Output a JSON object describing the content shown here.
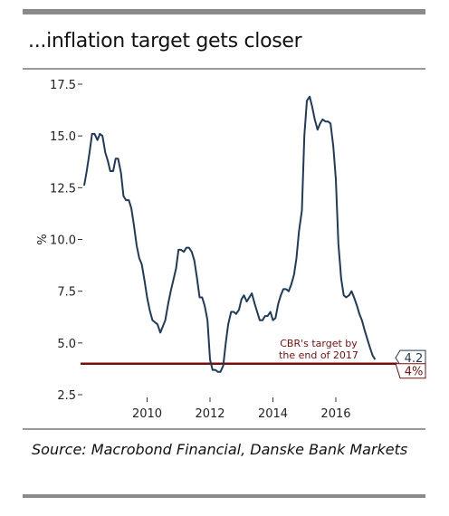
{
  "title": "...inflation target gets closer",
  "source": "Source: Macrobond Financial, Danske Bank Markets",
  "chart_data": {
    "type": "line",
    "title": "...inflation target gets closer",
    "xlabel": "",
    "ylabel": "%",
    "x_ticks": [
      "2010",
      "2012",
      "2014",
      "2016"
    ],
    "y_ticks": [
      "2.5",
      "5.0",
      "7.5",
      "10.0",
      "12.5",
      "15.0",
      "17.5"
    ],
    "xlim": [
      2008.0,
      2017.9
    ],
    "ylim": [
      2.5,
      17.5
    ],
    "grid": false,
    "series": [
      {
        "color": "#1f3a5a",
        "x": [
          2008.0,
          2008.08,
          2008.17,
          2008.25,
          2008.33,
          2008.42,
          2008.5,
          2008.58,
          2008.67,
          2008.75,
          2008.83,
          2008.92,
          2009.0,
          2009.08,
          2009.17,
          2009.25,
          2009.33,
          2009.42,
          2009.5,
          2009.58,
          2009.67,
          2009.75,
          2009.83,
          2009.92,
          2010.0,
          2010.08,
          2010.17,
          2010.25,
          2010.33,
          2010.42,
          2010.5,
          2010.58,
          2010.67,
          2010.75,
          2010.83,
          2010.92,
          2011.0,
          2011.08,
          2011.17,
          2011.25,
          2011.33,
          2011.42,
          2011.5,
          2011.58,
          2011.67,
          2011.75,
          2011.83,
          2011.92,
          2012.0,
          2012.08,
          2012.17,
          2012.25,
          2012.33,
          2012.42,
          2012.5,
          2012.58,
          2012.67,
          2012.75,
          2012.83,
          2012.92,
          2013.0,
          2013.08,
          2013.17,
          2013.25,
          2013.33,
          2013.42,
          2013.5,
          2013.58,
          2013.67,
          2013.75,
          2013.83,
          2013.92,
          2014.0,
          2014.08,
          2014.17,
          2014.25,
          2014.33,
          2014.42,
          2014.5,
          2014.58,
          2014.67,
          2014.75,
          2014.83,
          2014.92,
          2015.0,
          2015.08,
          2015.17,
          2015.25,
          2015.33,
          2015.42,
          2015.5,
          2015.58,
          2015.67,
          2015.75,
          2015.83,
          2015.92,
          2016.0,
          2016.08,
          2016.17,
          2016.25,
          2016.33,
          2016.42,
          2016.5,
          2016.58,
          2016.67,
          2016.75,
          2016.83,
          2016.92,
          2017.0,
          2017.08,
          2017.17,
          2017.25
        ],
        "y": [
          12.6,
          13.3,
          14.2,
          15.1,
          15.1,
          14.8,
          15.1,
          15.0,
          14.2,
          13.8,
          13.3,
          13.3,
          13.9,
          13.9,
          13.2,
          12.1,
          11.9,
          11.9,
          11.5,
          10.7,
          9.7,
          9.1,
          8.8,
          8.0,
          7.2,
          6.6,
          6.1,
          6.0,
          5.9,
          5.5,
          5.8,
          6.1,
          6.9,
          7.5,
          8.0,
          8.6,
          9.5,
          9.5,
          9.4,
          9.6,
          9.6,
          9.4,
          9.0,
          8.2,
          7.2,
          7.2,
          6.8,
          6.1,
          4.2,
          3.7,
          3.7,
          3.6,
          3.6,
          3.9,
          5.0,
          5.9,
          6.5,
          6.5,
          6.4,
          6.6,
          7.1,
          7.3,
          7.0,
          7.2,
          7.4,
          6.9,
          6.5,
          6.1,
          6.1,
          6.3,
          6.3,
          6.5,
          6.1,
          6.2,
          6.9,
          7.3,
          7.6,
          7.6,
          7.5,
          7.8,
          8.3,
          9.1,
          10.4,
          11.4,
          15.0,
          16.7,
          16.9,
          16.4,
          15.8,
          15.3,
          15.6,
          15.8,
          15.7,
          15.7,
          15.6,
          14.5,
          12.9,
          9.8,
          8.1,
          7.3,
          7.2,
          7.3,
          7.5,
          7.2,
          6.8,
          6.4,
          6.1,
          5.6,
          5.2,
          4.8,
          4.4,
          4.2
        ]
      }
    ],
    "reference_line": {
      "value": 4.0,
      "color": "#7a0c0c",
      "label": "4%"
    },
    "end_label": {
      "value": 4.2,
      "label": "4.2"
    },
    "annotation": [
      "CBR's target by",
      "the end of 2017"
    ],
    "legend": "none"
  }
}
